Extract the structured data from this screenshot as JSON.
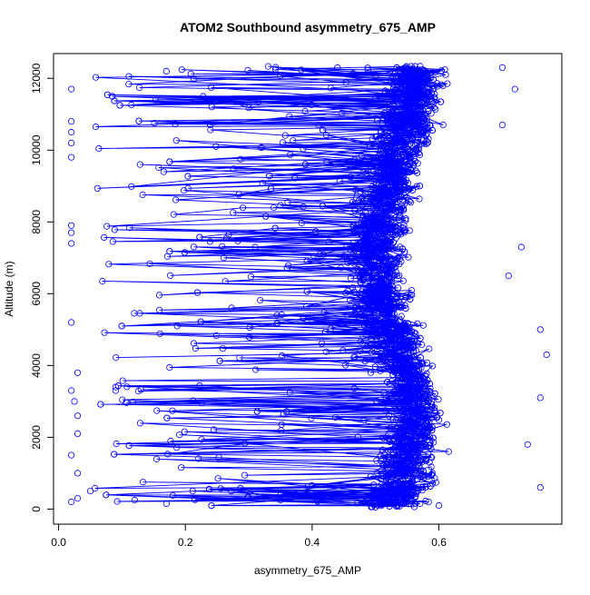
{
  "chart_data": {
    "type": "scatter",
    "title": "ATOM2 Southbound asymmetry_675_AMP",
    "xlabel": "asymmetry_675_AMP",
    "ylabel": "Altitude (m)",
    "xlim": [
      0,
      0.8
    ],
    "ylim": [
      0,
      12500
    ],
    "x_ticks": [
      0.0,
      0.2,
      0.4,
      0.6
    ],
    "x_tick_labels": [
      "0.0",
      "0.2",
      "0.4",
      "0.6"
    ],
    "y_ticks": [
      0,
      2000,
      4000,
      6000,
      8000,
      10000,
      12000
    ],
    "y_tick_labels": [
      "0",
      "2000",
      "4000",
      "6000",
      "8000",
      "10000",
      "12000"
    ],
    "grid": false,
    "series": [
      {
        "color": "#0000ff",
        "marker": "open-circle",
        "connected": true,
        "sample_points": [
          {
            "x": 0.02,
            "y": 200
          },
          {
            "x": 0.03,
            "y": 300
          },
          {
            "x": 0.05,
            "y": 500
          },
          {
            "x": 0.03,
            "y": 1000
          },
          {
            "x": 0.02,
            "y": 1500
          },
          {
            "x": 0.03,
            "y": 2100
          },
          {
            "x": 0.03,
            "y": 2600
          },
          {
            "x": 0.025,
            "y": 3000
          },
          {
            "x": 0.02,
            "y": 3300
          },
          {
            "x": 0.03,
            "y": 3800
          },
          {
            "x": 0.09,
            "y": 3300
          },
          {
            "x": 0.09,
            "y": 3400
          },
          {
            "x": 0.02,
            "y": 5200
          },
          {
            "x": 0.02,
            "y": 7400
          },
          {
            "x": 0.02,
            "y": 7700
          },
          {
            "x": 0.02,
            "y": 7900
          },
          {
            "x": 0.02,
            "y": 9800
          },
          {
            "x": 0.02,
            "y": 10200
          },
          {
            "x": 0.02,
            "y": 10500
          },
          {
            "x": 0.02,
            "y": 10800
          },
          {
            "x": 0.02,
            "y": 11700
          },
          {
            "x": 0.17,
            "y": 12200
          },
          {
            "x": 0.41,
            "y": 10700
          },
          {
            "x": 0.44,
            "y": 12300
          },
          {
            "x": 0.7,
            "y": 12300
          },
          {
            "x": 0.72,
            "y": 11700
          },
          {
            "x": 0.7,
            "y": 10700
          },
          {
            "x": 0.73,
            "y": 7300
          },
          {
            "x": 0.71,
            "y": 6500
          },
          {
            "x": 0.76,
            "y": 5000
          },
          {
            "x": 0.77,
            "y": 4300
          },
          {
            "x": 0.76,
            "y": 3100
          },
          {
            "x": 0.74,
            "y": 1800
          },
          {
            "x": 0.76,
            "y": 600
          },
          {
            "x": 0.6,
            "y": 100
          },
          {
            "x": 0.5,
            "y": 50
          },
          {
            "x": 0.35,
            "y": 250
          },
          {
            "x": 0.17,
            "y": 150
          },
          {
            "x": 0.12,
            "y": 250
          }
        ]
      }
    ]
  }
}
